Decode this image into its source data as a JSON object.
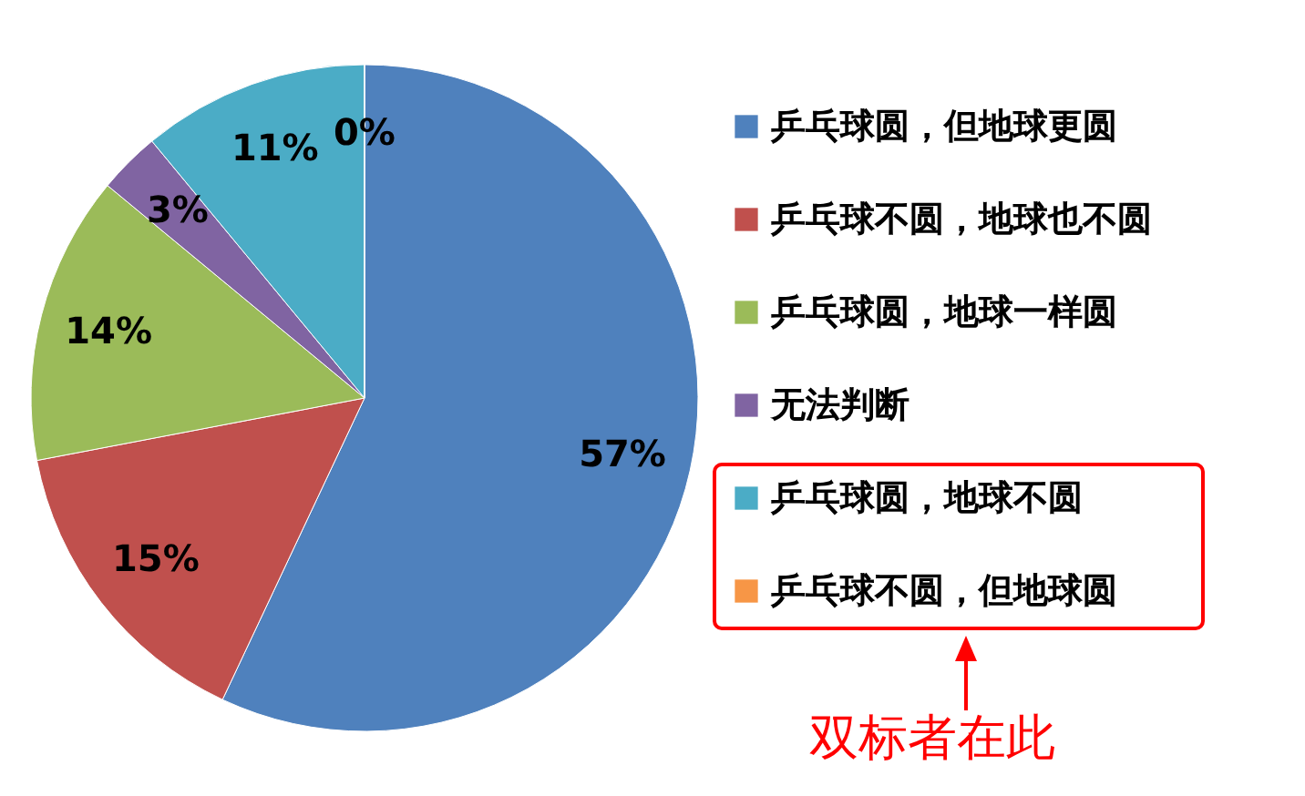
{
  "chart_data": {
    "type": "pie",
    "categories": [
      "乒乓球圆，但地球更圆",
      "乒乓球不圆，地球也不圆",
      "乒乓球圆，地球一样圆",
      "无法判断",
      "乒乓球圆，地球不圆",
      "乒乓球不圆，但地球圆"
    ],
    "values": [
      57,
      15,
      14,
      3,
      11,
      0
    ],
    "colors": [
      "#4f81bd",
      "#c0504d",
      "#9bbb59",
      "#8064a2",
      "#4bacc6",
      "#f79646"
    ],
    "value_labels": [
      "57%",
      "15%",
      "14%",
      "3%",
      "11%",
      "0%"
    ],
    "legend": "right",
    "annotations": [
      "双标者在此"
    ]
  }
}
